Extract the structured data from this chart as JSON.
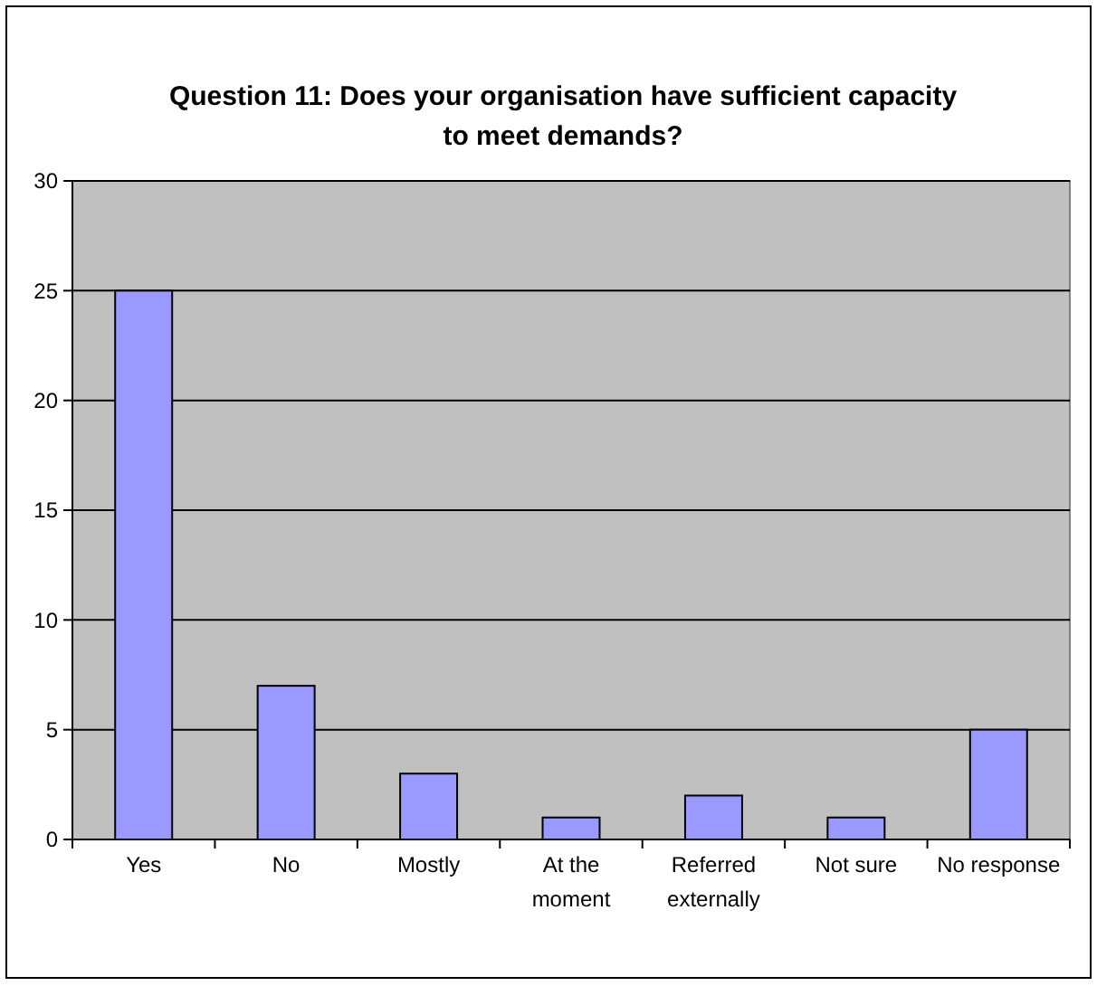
{
  "chart_data": {
    "type": "bar",
    "title": "Question 11: Does your organisation have sufficient capacity to meet demands?",
    "categories": [
      "Yes",
      "No",
      "Mostly",
      "At the moment",
      "Referred externally",
      "Not sure",
      "No response"
    ],
    "values": [
      25,
      7,
      3,
      1,
      2,
      1,
      5
    ],
    "color": "#9999ff",
    "ylim": [
      0,
      30
    ],
    "yticks": [
      0,
      5,
      10,
      15,
      20,
      25,
      30
    ],
    "grid": "y"
  }
}
